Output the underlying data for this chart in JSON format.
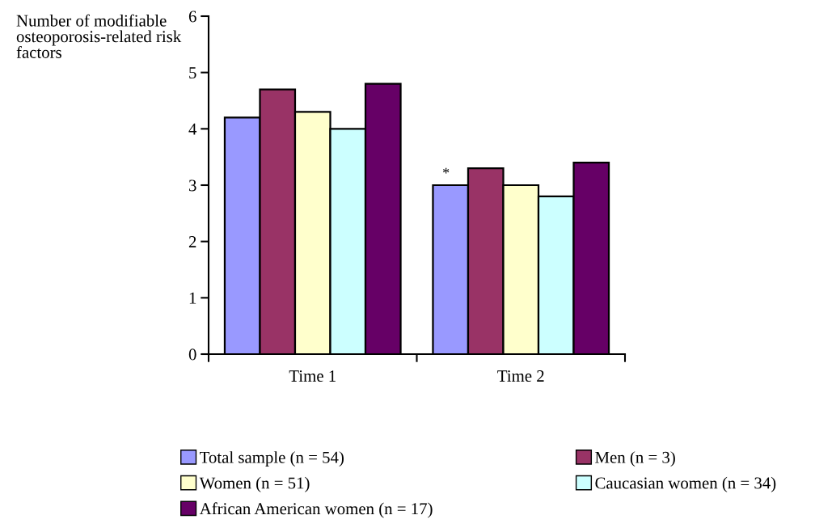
{
  "chart_data": {
    "type": "bar",
    "ylabel": "Number of modifiable osteoporosis-related risk factors",
    "categories": [
      "Time 1",
      "Time 2"
    ],
    "series": [
      {
        "name": "Total sample (n = 54)",
        "color": "#9999ff",
        "values": [
          4.2,
          3.0
        ]
      },
      {
        "name": "Men (n = 3)",
        "color": "#993366",
        "values": [
          4.7,
          3.3
        ]
      },
      {
        "name": "Women (n = 51)",
        "color": "#ffffcc",
        "values": [
          4.3,
          3.0
        ]
      },
      {
        "name": "Caucasian women (n = 34)",
        "color": "#ccffff",
        "values": [
          4.0,
          2.8
        ]
      },
      {
        "name": "African American women (n = 17)",
        "color": "#660066",
        "values": [
          4.8,
          3.4
        ]
      }
    ],
    "ylim": [
      0,
      6
    ],
    "yticks": [
      0,
      1,
      2,
      3,
      4,
      5,
      6
    ],
    "grid": false,
    "legend": "bottom",
    "annotations": [
      "*"
    ]
  }
}
